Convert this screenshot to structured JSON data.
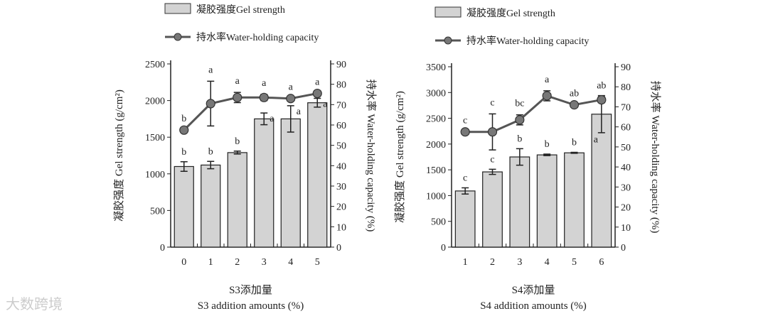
{
  "watermark": "大数跨境",
  "colors": {
    "bar": "#d3d3d3",
    "line": "#555555",
    "point": "#777777"
  },
  "chart_data": [
    {
      "type": "bar+line",
      "legend": {
        "bar": "凝胶强度Gel strength",
        "line": "持水率Water-holding capacity"
      },
      "categories": [
        "0",
        "1",
        "2",
        "3",
        "4",
        "5"
      ],
      "xlabel_cn": "S3添加量",
      "xlabel": "S3 addition amounts (%)",
      "ylabel": "凝胶强度 Gel strength (g/cm²)",
      "y2label": "持水率 Water-holding capacity (%)",
      "ylim": [
        0,
        2500
      ],
      "yticks": [
        0,
        500,
        1000,
        1500,
        2000,
        2500
      ],
      "y2lim": [
        0,
        90
      ],
      "y2ticks": [
        0,
        10,
        20,
        30,
        40,
        50,
        60,
        70,
        80,
        90
      ],
      "bars": {
        "values": [
          1100,
          1120,
          1290,
          1750,
          1750,
          1970
        ],
        "errors": [
          65,
          50,
          20,
          80,
          180,
          60
        ],
        "letters": [
          "b",
          "b",
          "b",
          "a",
          "a",
          "a"
        ]
      },
      "line": {
        "values": [
          57.5,
          70.5,
          73.5,
          73.5,
          73,
          75.5
        ],
        "errors": [
          0,
          11,
          2.5,
          1.5,
          0,
          0
        ],
        "letters": [
          "b",
          "a",
          "a",
          "a",
          "a",
          "a"
        ]
      }
    },
    {
      "type": "bar+line",
      "legend": {
        "bar": "凝胶强度Gel strength",
        "line": "持水率Water-holding capacity"
      },
      "categories": [
        "1",
        "2",
        "3",
        "4",
        "5",
        "6"
      ],
      "xlabel_cn": "S4添加量",
      "xlabel": "S4 addition amounts (%)",
      "ylabel": "凝胶强度 Gel strength (g/cm²)",
      "y2label": "持水率 Water-holding capacity (%)",
      "ylim": [
        0,
        3500
      ],
      "yticks": [
        0,
        500,
        1000,
        1500,
        2000,
        2500,
        3000,
        3500
      ],
      "y2lim": [
        0,
        90
      ],
      "y2ticks": [
        0,
        10,
        20,
        30,
        40,
        50,
        60,
        70,
        80,
        90
      ],
      "bars": {
        "values": [
          1090,
          1460,
          1750,
          1790,
          1830,
          2580
        ],
        "errors": [
          60,
          50,
          160,
          15,
          10,
          360
        ],
        "letters": [
          "c",
          "c",
          "b",
          "b",
          "b",
          "a"
        ]
      },
      "line": {
        "values": [
          57.5,
          57.5,
          63.5,
          75.5,
          71,
          73.5
        ],
        "errors": [
          0,
          9,
          2.5,
          2.5,
          0,
          1.5
        ],
        "letters": [
          "c",
          "c",
          "bc",
          "a",
          "ab",
          "ab"
        ]
      }
    }
  ]
}
